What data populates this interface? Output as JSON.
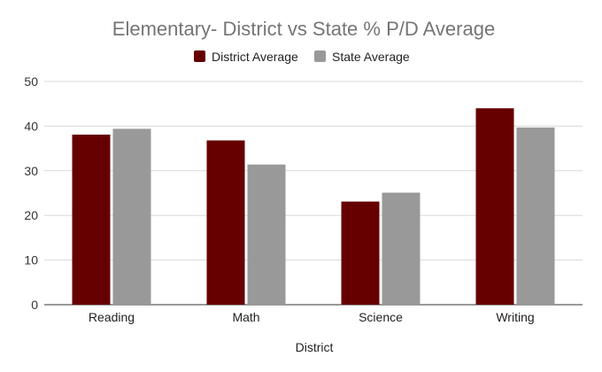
{
  "chart_data": {
    "type": "bar",
    "title": "Elementary- District vs State % P/D Average",
    "xlabel": "District",
    "ylabel": "",
    "categories": [
      "Reading",
      "Math",
      "Science",
      "Writing"
    ],
    "series": [
      {
        "name": "District Average",
        "color": "#660000",
        "values": [
          38.1,
          36.8,
          23.1,
          44.0
        ]
      },
      {
        "name": "State Average",
        "color": "#999999",
        "values": [
          39.4,
          31.4,
          25.1,
          39.7
        ]
      }
    ],
    "ylim": [
      0,
      50
    ],
    "yticks": [
      "0",
      "10",
      "20",
      "30",
      "40",
      "50"
    ],
    "grid": true,
    "legend_position": "top"
  }
}
